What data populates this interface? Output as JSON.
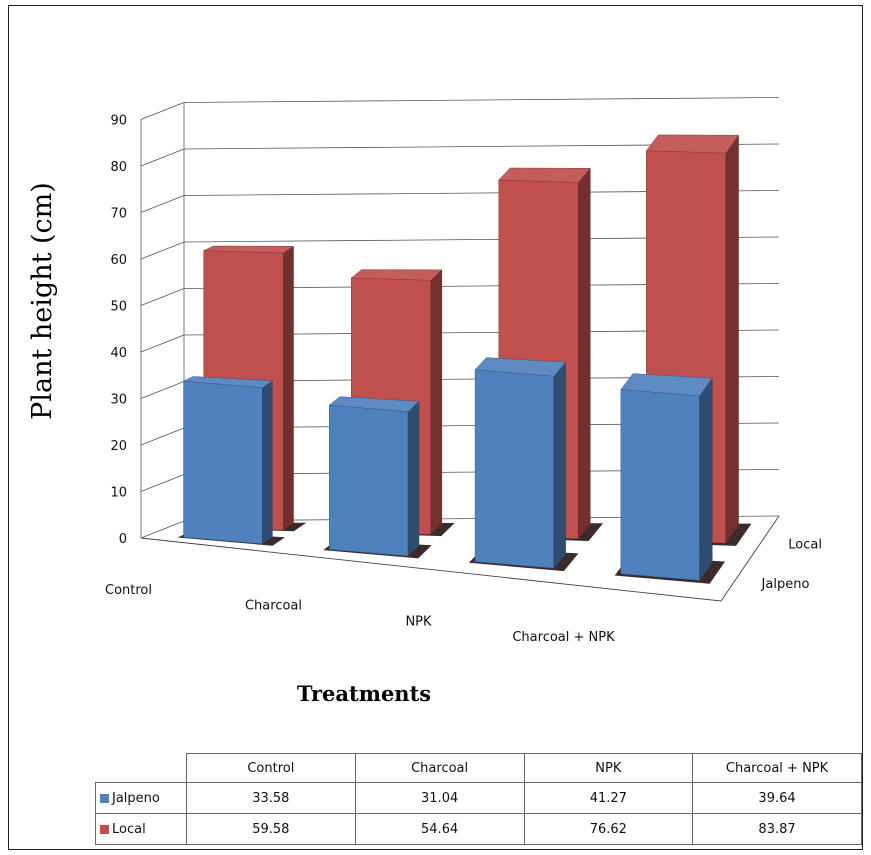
{
  "chart_data": {
    "type": "bar",
    "ylabel": "Plant height (cm)",
    "xlabel": "Treatments",
    "categories": [
      "Control",
      "Charcoal",
      "NPK",
      "Charcoal + NPK"
    ],
    "series": [
      {
        "name": "Jalpeno",
        "values": [
          33.58,
          31.04,
          41.27,
          39.64
        ],
        "color": "#4f81bd"
      },
      {
        "name": "Local",
        "values": [
          59.58,
          54.64,
          76.62,
          83.87
        ],
        "color": "#c0504d"
      }
    ],
    "ylim": [
      0,
      90
    ],
    "yticks": [
      0,
      10,
      20,
      30,
      40,
      50,
      60,
      70,
      80,
      90
    ],
    "grid": true,
    "data_table": {
      "rows": [
        {
          "label": "Jalpeno",
          "values": [
            "33.58",
            "31.04",
            "41.27",
            "39.64"
          ]
        },
        {
          "label": "Local",
          "values": [
            "59.58",
            "54.64",
            "76.62",
            "83.87"
          ]
        }
      ]
    }
  }
}
